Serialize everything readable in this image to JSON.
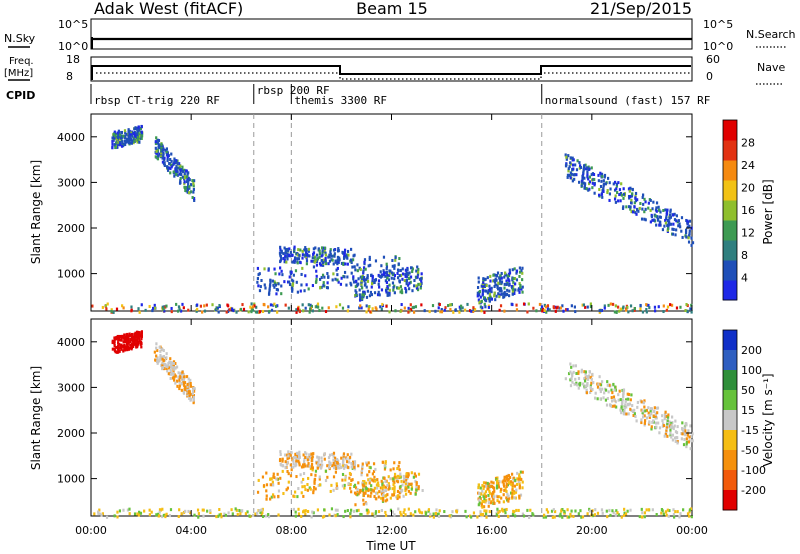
{
  "header": {
    "title": "Adak West (fitACF)",
    "beam": "Beam 15",
    "date": "21/Sep/2015"
  },
  "status_panel": {
    "nsky_label": "N.Sky",
    "nsearch_label": "N.Search",
    "nsky_ticks": [
      "10^5",
      "10^0"
    ],
    "nsearch_ticks": [
      "10^5",
      "10^0"
    ],
    "freq_label": "Freq.",
    "freq_unit": "[MHz]",
    "freq_ticks": [
      "18",
      "8"
    ],
    "nave_label": "Nave",
    "nave_ticks": [
      "60",
      "0"
    ],
    "cpid_label": "CPID"
  },
  "cpid_segments": [
    {
      "label": "rbsp CT-trig 220 RF",
      "start_hour": 0.0
    },
    {
      "label": "rbsp 200 RF",
      "start_hour": 6.5
    },
    {
      "label": "themis 3300 RF",
      "start_hour": 8.0
    },
    {
      "label": "normalsound (fast) 157 RF",
      "start_hour": 18.0
    }
  ],
  "chart_data": [
    {
      "type": "heatmap",
      "name": "power",
      "ylabel": "Slant Range [km]",
      "xlabel": "Time UT",
      "xlim_hours": [
        0,
        24
      ],
      "ylim_km": [
        180,
        4500
      ],
      "yticks": [
        1000,
        2000,
        3000,
        4000
      ],
      "colorbar": {
        "label": "Power [dB]",
        "ticks": [
          "4",
          "8",
          "12",
          "16",
          "20",
          "24",
          "28"
        ],
        "colors": [
          "#1e28e6",
          "#1f4fb8",
          "#2f7f7f",
          "#3d9a52",
          "#8fbf2d",
          "#f2c215",
          "#f58a10",
          "#e23212",
          "#e00000"
        ]
      },
      "features": [
        {
          "desc": "echo band",
          "hours": [
            6.6,
            12.3
          ],
          "km": [
            800,
            1250
          ]
        },
        {
          "desc": "echo band",
          "hours": [
            10.5,
            17.2
          ],
          "km": [
            600,
            1000
          ]
        },
        {
          "desc": "echo band",
          "hours": [
            18.9,
            24.0
          ],
          "km": [
            1500,
            3500
          ]
        },
        {
          "desc": "echo band",
          "hours": [
            2.5,
            4.1
          ],
          "km": [
            2700,
            4000
          ]
        },
        {
          "desc": "near range",
          "hours": [
            0.0,
            24.0
          ],
          "km": [
            180,
            400
          ]
        }
      ]
    },
    {
      "type": "heatmap",
      "name": "velocity",
      "ylabel": "Slant Range [km]",
      "xlabel": "Time UT",
      "xlim_hours": [
        0,
        24
      ],
      "ylim_km": [
        180,
        4500
      ],
      "yticks": [
        1000,
        2000,
        3000,
        4000
      ],
      "colorbar": {
        "label": "Velocity [m s⁻¹]",
        "ticks": [
          "200",
          "100",
          "50",
          "15",
          "-15",
          "-50",
          "-100",
          "-200"
        ],
        "colors": [
          "#1030c8",
          "#2f5fc0",
          "#2f8f3a",
          "#66c23b",
          "#c8c8c8",
          "#f5be14",
          "#f5900c",
          "#f25a0a",
          "#e00000"
        ]
      }
    }
  ],
  "time_axis": {
    "label": "Time UT",
    "ticks": [
      "00:00",
      "04:00",
      "08:00",
      "12:00",
      "16:00",
      "20:00",
      "00:00"
    ]
  }
}
